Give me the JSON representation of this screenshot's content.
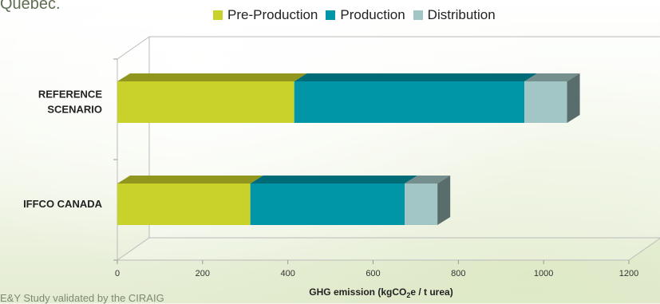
{
  "header": {
    "partial_text": "Québec."
  },
  "footer": {
    "partial_text": "E&Y Study validated by the CIRAIG"
  },
  "colors": {
    "pre_production": "#c9d22a",
    "production": "#0096a7",
    "distribution": "#a2c6c6",
    "axis": "#bbbbbb"
  },
  "chart_data": {
    "type": "bar",
    "orientation": "horizontal",
    "stacked": true,
    "three_d": true,
    "categories": [
      "REFERENCE\nSCENARIO",
      "IFFCO CANADA"
    ],
    "series": [
      {
        "name": "Pre-Production",
        "values": [
          415,
          312
        ]
      },
      {
        "name": "Production",
        "values": [
          540,
          362
        ]
      },
      {
        "name": "Distribution",
        "values": [
          100,
          77
        ]
      }
    ],
    "xlabel": "GHG emission (kgCO2e / t urea)",
    "xlim": [
      0,
      1200
    ],
    "xticks": [
      0,
      200,
      400,
      600,
      800,
      1000,
      1200
    ],
    "legend_position": "top"
  }
}
